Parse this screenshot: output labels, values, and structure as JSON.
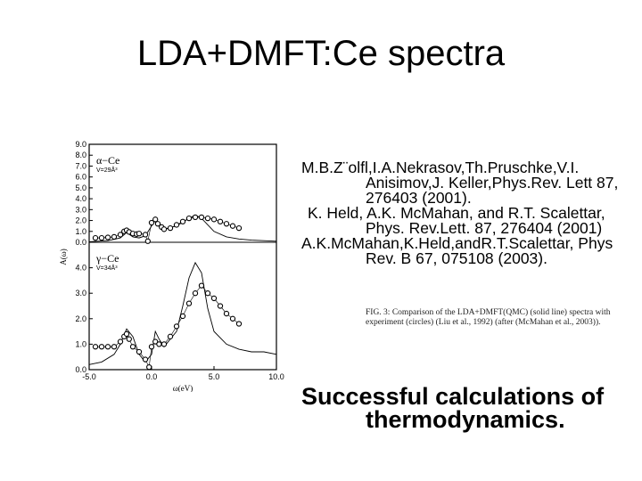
{
  "slide": {
    "title": "LDA+DMFT:Ce spectra",
    "references": [
      "M.B.Z¨olfl,I.A.Nekrasov,Th.Pruschke,V.I. Anisimov,J. Keller,Phys.Rev. Lett 87, 276403 (2001).",
      "K. Held, A.K. McMahan, and R.T. Scalettar, Phys. Rev.Lett. 87, 276404 (2001)",
      "A.K.McMahan,K.Held,andR.T.Scalettar, Phys Rev. B 67, 075108 (2003)."
    ],
    "caption": "FIG. 3: Comparison of the LDA+DMFT(QMC) (solid line) spectra with experiment (circles) (Liu et al., 1992) (after (McMahan et al., 2003)).",
    "summary": "Successful calculations of thermodynamics."
  },
  "chart_data": {
    "type": "line",
    "xlabel": "ω(eV)",
    "ylabel": "A(ω)",
    "xlim": [
      -5.0,
      10.0
    ],
    "x_ticks": [
      "-5.0",
      "0.0",
      "5.0",
      "10.0"
    ],
    "panels": [
      {
        "label": "α−Ce",
        "sublabel": "V=29Å³",
        "ylim": [
          0,
          9
        ],
        "y_ticks": [
          "0.0",
          "1.0",
          "2.0",
          "3.0",
          "4.0",
          "5.0",
          "6.0",
          "7.0",
          "8.0",
          "9.0"
        ],
        "series": [
          {
            "kind": "theory",
            "x": [
              -5,
              -3.5,
              -2.5,
              -2.0,
              -1.5,
              -1.0,
              -0.5,
              0,
              0.2,
              0.5,
              1,
              2,
              3,
              3.5,
              4,
              4.5,
              5,
              6,
              7,
              8,
              9,
              10
            ],
            "y": [
              0.05,
              0.15,
              0.4,
              0.9,
              0.5,
              0.4,
              0.6,
              1.5,
              2.0,
              1.6,
              1.2,
              1.5,
              2.2,
              2.5,
              2.2,
              1.6,
              1.0,
              0.5,
              0.3,
              0.2,
              0.15,
              0.1
            ]
          },
          {
            "kind": "experiment",
            "x": [
              -4.5,
              -4,
              -3.5,
              -3,
              -2.5,
              -2.2,
              -2,
              -1.8,
              -1.5,
              -1.2,
              -1,
              -0.5,
              -0.3,
              0,
              0.3,
              0.5,
              0.8,
              1,
              1.5,
              2,
              2.5,
              3,
              3.5,
              4,
              4.5,
              5,
              5.5,
              6,
              6.5,
              7
            ],
            "y": [
              0.4,
              0.4,
              0.45,
              0.5,
              0.7,
              1.0,
              1.1,
              0.95,
              0.8,
              0.75,
              0.8,
              0.7,
              0.1,
              1.8,
              2.1,
              1.7,
              1.4,
              1.2,
              1.3,
              1.6,
              1.9,
              2.2,
              2.3,
              2.3,
              2.2,
              2.1,
              1.9,
              1.7,
              1.5,
              1.3
            ]
          }
        ]
      },
      {
        "label": "γ−Ce",
        "sublabel": "V=34Å³",
        "ylim": [
          0,
          5
        ],
        "y_ticks": [
          "0.0",
          "1.0",
          "2.0",
          "3.0",
          "4.0"
        ],
        "series": [
          {
            "kind": "theory",
            "x": [
              -5,
              -4,
              -3,
              -2.5,
              -2.0,
              -1.5,
              -1.0,
              -0.5,
              0,
              0.3,
              0.6,
              1,
              2,
              2.5,
              3,
              3.5,
              4,
              4.5,
              5,
              6,
              7,
              8,
              9,
              10
            ],
            "y": [
              0.2,
              0.3,
              0.6,
              1.0,
              1.6,
              1.3,
              0.6,
              0.3,
              0.6,
              1.5,
              1.2,
              0.9,
              1.5,
              2.5,
              3.6,
              4.2,
              3.8,
              2.4,
              1.5,
              1.0,
              0.8,
              0.7,
              0.7,
              0.6
            ]
          },
          {
            "kind": "experiment",
            "x": [
              -4.5,
              -4,
              -3.5,
              -3,
              -2.5,
              -2.2,
              -2,
              -1.8,
              -1.5,
              -1,
              -0.5,
              -0.2,
              0,
              0.3,
              0.6,
              1,
              1.5,
              2,
              2.5,
              3,
              3.5,
              4,
              4.5,
              5,
              5.5,
              6,
              6.5,
              7
            ],
            "y": [
              0.9,
              0.9,
              0.9,
              0.9,
              1.1,
              1.3,
              1.4,
              1.2,
              0.9,
              0.7,
              0.4,
              0.1,
              0.9,
              1.1,
              1.0,
              1.0,
              1.3,
              1.7,
              2.1,
              2.6,
              3.0,
              3.3,
              3.0,
              2.8,
              2.5,
              2.2,
              2.0,
              1.8
            ]
          }
        ]
      }
    ]
  }
}
